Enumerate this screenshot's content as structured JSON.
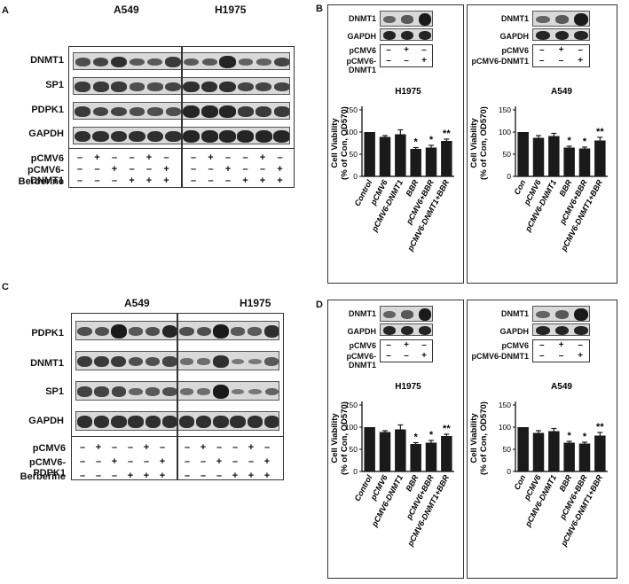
{
  "panels": {
    "A": {
      "letter": "A",
      "cells": [
        "A549",
        "H1975"
      ],
      "blot_rows": [
        "DNMT1",
        "SP1",
        "PDPK1",
        "GAPDH"
      ],
      "treatments": [
        {
          "label": "pCMV6",
          "signs": [
            "–",
            "+",
            "–",
            "–",
            "+",
            "–"
          ]
        },
        {
          "label": "pCMV6-DNMT1",
          "signs": [
            "–",
            "–",
            "+",
            "–",
            "–",
            "+"
          ]
        },
        {
          "label": "Berberine",
          "signs": [
            "–",
            "–",
            "–",
            "+",
            "+",
            "+"
          ]
        }
      ]
    },
    "C": {
      "letter": "C",
      "cells": [
        "A549",
        "H1975"
      ],
      "blot_rows": [
        "PDPK1",
        "DNMT1",
        "SP1",
        "GAPDH"
      ],
      "treatments": [
        {
          "label": "pCMV6",
          "signs": [
            "–",
            "+",
            "–",
            "–",
            "+",
            "–"
          ]
        },
        {
          "label": "pCMV6-PDPK1",
          "signs": [
            "–",
            "–",
            "+",
            "–",
            "–",
            "+"
          ]
        },
        {
          "label": "Berberine",
          "signs": [
            "–",
            "–",
            "–",
            "+",
            "+",
            "+"
          ]
        }
      ]
    },
    "B": {
      "letter": "B"
    },
    "D": {
      "letter": "D"
    }
  },
  "mini_blot": {
    "rows": [
      "DNMT1",
      "GAPDH"
    ],
    "treatments": [
      {
        "label": "pCMV6",
        "signs": [
          "–",
          "+",
          "–"
        ]
      },
      {
        "label": "pCMV6-DNMT1",
        "signs": [
          "–",
          "–",
          "+"
        ]
      }
    ]
  },
  "chart_data": [
    {
      "type": "bar",
      "panel": "B",
      "title": "H1975",
      "ylabel": "Cell Viability\n(% of Con, OD570)",
      "categories": [
        "Control",
        "pCMV6",
        "pCMV6-DNMT1",
        "BBR",
        "pCMV6+BBR",
        "pCMV6-DNMT1+BBR"
      ],
      "values": [
        100,
        89,
        95,
        62,
        65,
        80
      ],
      "errors": [
        0,
        3,
        10,
        3,
        5,
        4
      ],
      "significance": [
        "",
        "",
        "",
        "*",
        "*",
        "**"
      ],
      "ylim": [
        0,
        150
      ],
      "yticks": [
        0,
        50,
        100,
        150
      ]
    },
    {
      "type": "bar",
      "panel": "B",
      "title": "A549",
      "ylabel": "Cell Viability\n(% of Con, OD570)",
      "categories": [
        "Con",
        "pCMV6",
        "pCMV6-DNMT1",
        "BBR",
        "pCMV6+BBR",
        "pCMV6-DNMT1+BBR"
      ],
      "values": [
        100,
        87,
        91,
        65,
        63,
        81
      ],
      "errors": [
        0,
        5,
        6,
        3,
        3,
        7
      ],
      "significance": [
        "",
        "",
        "",
        "*",
        "*",
        "**"
      ],
      "ylim": [
        0,
        150
      ],
      "yticks": [
        0,
        50,
        100,
        150
      ]
    },
    {
      "type": "bar",
      "panel": "D",
      "title": "H1975",
      "ylabel": "Cell Viability\n(% of Con, OD570)",
      "categories": [
        "Control",
        "pCMV6",
        "pCMV6-DNMT1",
        "BBR",
        "pCMV6+BBR",
        "pCMV6-DNMT1+BBR"
      ],
      "values": [
        100,
        89,
        95,
        62,
        65,
        80
      ],
      "errors": [
        0,
        3,
        10,
        3,
        5,
        4
      ],
      "significance": [
        "",
        "",
        "",
        "*",
        "*",
        "**"
      ],
      "ylim": [
        0,
        150
      ],
      "yticks": [
        0,
        50,
        100,
        150
      ]
    },
    {
      "type": "bar",
      "panel": "D",
      "title": "A549",
      "ylabel": "Cell Viability\n(% of Con, OD570)",
      "categories": [
        "Con",
        "pCMV6",
        "pCMV6-DNMT1",
        "BBR",
        "pCMV6+BBR",
        "pCMV6-DNMT1+BBR"
      ],
      "values": [
        100,
        87,
        91,
        65,
        63,
        81
      ],
      "errors": [
        0,
        5,
        6,
        3,
        3,
        7
      ],
      "significance": [
        "",
        "",
        "",
        "*",
        "*",
        "**"
      ],
      "ylim": [
        0,
        150
      ],
      "yticks": [
        0,
        50,
        100,
        150
      ]
    }
  ]
}
